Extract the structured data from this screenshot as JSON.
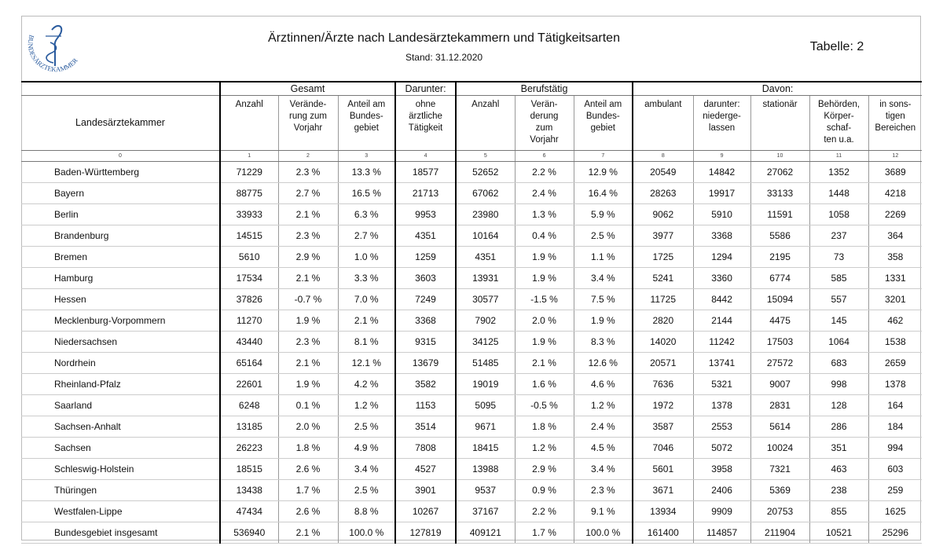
{
  "header": {
    "logo_text": "BUNDESÄRZTEKAMMER",
    "title": "Ärztinnen/Ärzte nach Landesärztekammern und Tätigkeitsarten",
    "subtitle": "Stand: 31.12.2020",
    "table_label": "Tabelle: 2"
  },
  "table": {
    "header_groups": [
      {
        "label": "Gesamt",
        "span": 3
      },
      {
        "label": "Darunter:",
        "span": 1
      },
      {
        "label": "Berufstätig",
        "span": 3
      },
      {
        "label": "Davon:",
        "span": 5
      }
    ],
    "columns": [
      "Landesärztekammer",
      "Anzahl",
      "Verände-\nrung zum\nVorjahr",
      "Anteil am\nBundes-\ngebiet",
      "ohne\närztliche\nTätigkeit",
      "Anzahl",
      "Verän-\nderung\nzum\nVorjahr",
      "Anteil am\nBundes-\ngebiet",
      "ambulant",
      "darunter:\nniederge-\nlassen",
      "stationär",
      "Behörden,\nKörper-\nschaf-\nten u.a.",
      "in sons-\ntigen\nBereichen"
    ],
    "column_numbers": [
      0,
      1,
      2,
      3,
      4,
      5,
      6,
      7,
      8,
      9,
      10,
      11,
      12
    ],
    "rows": [
      [
        "Baden-Württemberg",
        71229,
        "2.3 %",
        "13.3 %",
        18577,
        52652,
        "2.2 %",
        "12.9 %",
        20549,
        14842,
        27062,
        1352,
        3689
      ],
      [
        "Bayern",
        88775,
        "2.7 %",
        "16.5 %",
        21713,
        67062,
        "2.4 %",
        "16.4 %",
        28263,
        19917,
        33133,
        1448,
        4218
      ],
      [
        "Berlin",
        33933,
        "2.1 %",
        "6.3 %",
        9953,
        23980,
        "1.3 %",
        "5.9 %",
        9062,
        5910,
        11591,
        1058,
        2269
      ],
      [
        "Brandenburg",
        14515,
        "2.3 %",
        "2.7 %",
        4351,
        10164,
        "0.4 %",
        "2.5 %",
        3977,
        3368,
        5586,
        237,
        364
      ],
      [
        "Bremen",
        5610,
        "2.9 %",
        "1.0 %",
        1259,
        4351,
        "1.9 %",
        "1.1 %",
        1725,
        1294,
        2195,
        73,
        358
      ],
      [
        "Hamburg",
        17534,
        "2.1 %",
        "3.3 %",
        3603,
        13931,
        "1.9 %",
        "3.4 %",
        5241,
        3360,
        6774,
        585,
        1331
      ],
      [
        "Hessen",
        37826,
        "-0.7 %",
        "7.0 %",
        7249,
        30577,
        "-1.5 %",
        "7.5 %",
        11725,
        8442,
        15094,
        557,
        3201
      ],
      [
        "Mecklenburg-Vorpommern",
        11270,
        "1.9 %",
        "2.1 %",
        3368,
        7902,
        "2.0 %",
        "1.9 %",
        2820,
        2144,
        4475,
        145,
        462
      ],
      [
        "Niedersachsen",
        43440,
        "2.3 %",
        "8.1 %",
        9315,
        34125,
        "1.9 %",
        "8.3 %",
        14020,
        11242,
        17503,
        1064,
        1538
      ],
      [
        "Nordrhein",
        65164,
        "2.1 %",
        "12.1 %",
        13679,
        51485,
        "2.1 %",
        "12.6 %",
        20571,
        13741,
        27572,
        683,
        2659
      ],
      [
        "Rheinland-Pfalz",
        22601,
        "1.9 %",
        "4.2 %",
        3582,
        19019,
        "1.6 %",
        "4.6 %",
        7636,
        5321,
        9007,
        998,
        1378
      ],
      [
        "Saarland",
        6248,
        "0.1 %",
        "1.2 %",
        1153,
        5095,
        "-0.5 %",
        "1.2 %",
        1972,
        1378,
        2831,
        128,
        164
      ],
      [
        "Sachsen-Anhalt",
        13185,
        "2.0 %",
        "2.5 %",
        3514,
        9671,
        "1.8 %",
        "2.4 %",
        3587,
        2553,
        5614,
        286,
        184
      ],
      [
        "Sachsen",
        26223,
        "1.8 %",
        "4.9 %",
        7808,
        18415,
        "1.2 %",
        "4.5 %",
        7046,
        5072,
        10024,
        351,
        994
      ],
      [
        "Schleswig-Holstein",
        18515,
        "2.6 %",
        "3.4 %",
        4527,
        13988,
        "2.9 %",
        "3.4 %",
        5601,
        3958,
        7321,
        463,
        603
      ],
      [
        "Thüringen",
        13438,
        "1.7 %",
        "2.5 %",
        3901,
        9537,
        "0.9 %",
        "2.3 %",
        3671,
        2406,
        5369,
        238,
        259
      ],
      [
        "Westfalen-Lippe",
        47434,
        "2.6 %",
        "8.8 %",
        10267,
        37167,
        "2.2 %",
        "9.1 %",
        13934,
        9909,
        20753,
        855,
        1625
      ],
      [
        "Bundesgebiet insgesamt",
        536940,
        "2.1 %",
        "100.0 %",
        127819,
        409121,
        "1.7 %",
        "100.0 %",
        161400,
        114857,
        211904,
        10521,
        25296
      ]
    ]
  }
}
